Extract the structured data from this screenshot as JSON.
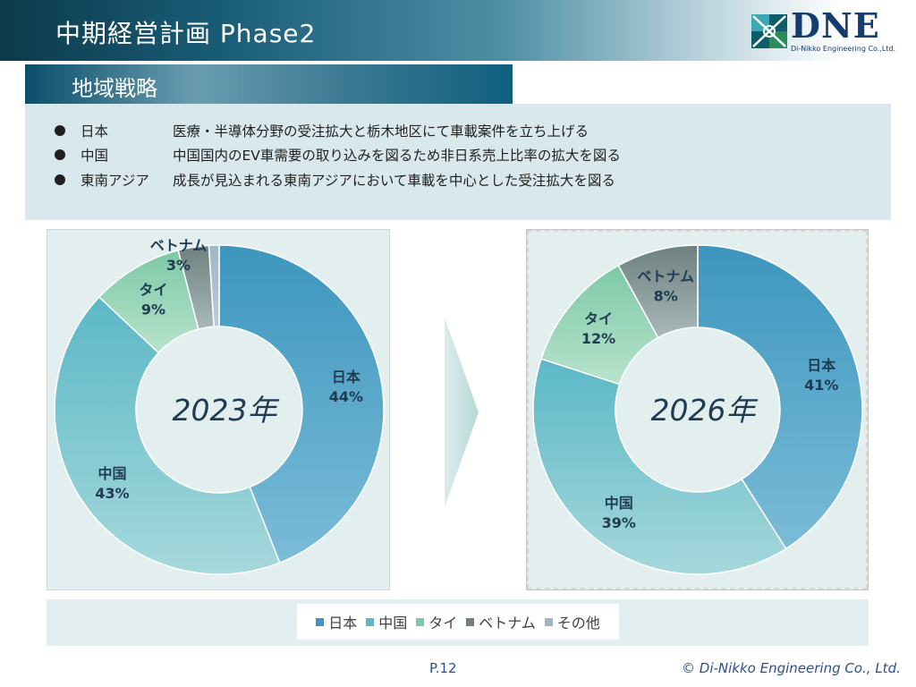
{
  "header": {
    "title": "中期経営計画 Phase2"
  },
  "logo": {
    "text": "DNE",
    "subtext": "Di-Nikko Engineering Co.,Ltd."
  },
  "section": {
    "title": "地域戦略"
  },
  "bullets": [
    {
      "label": "日本",
      "text": "医療・半導体分野の受注拡大と栃木地区にて車載案件を立ち上げる"
    },
    {
      "label": "中国",
      "text": "中国国内のEV車需要の取り込みを図るため非日系売上比率の拡大を図る"
    },
    {
      "label": "東南アジア",
      "text": "成長が見込まれる東南アジアにおいて車載を中心とした受注拡大を図る"
    }
  ],
  "colors": {
    "japan": [
      "#3d96be",
      "#7bbcd8"
    ],
    "china": [
      "#5bb8c6",
      "#a6d8dc"
    ],
    "thai": [
      "#7dc9a6",
      "#b8e3cc"
    ],
    "vietnam": [
      "#6e8080",
      "#a9b8b8"
    ],
    "other": [
      "#9fb6c4",
      "#b9cdd8"
    ],
    "label": "#1f3b52"
  },
  "chart_data": [
    {
      "type": "pie",
      "center_label": "2023年",
      "slices": [
        {
          "key": "japan",
          "name": "日本",
          "pct": "44%",
          "value": 44
        },
        {
          "key": "china",
          "name": "中国",
          "pct": "43%",
          "value": 43
        },
        {
          "key": "thai",
          "name": "タイ",
          "pct": "9%",
          "value": 9
        },
        {
          "key": "vietnam",
          "name": "ベトナム",
          "pct": "3%",
          "value": 3
        },
        {
          "key": "other",
          "name": "",
          "pct": "",
          "value": 1
        }
      ]
    },
    {
      "type": "pie",
      "center_label": "2026年",
      "slices": [
        {
          "key": "japan",
          "name": "日本",
          "pct": "41%",
          "value": 41
        },
        {
          "key": "china",
          "name": "中国",
          "pct": "39%",
          "value": 39
        },
        {
          "key": "thai",
          "name": "タイ",
          "pct": "12%",
          "value": 12
        },
        {
          "key": "vietnam",
          "name": "ベトナム",
          "pct": "8%",
          "value": 8
        }
      ]
    }
  ],
  "legend": [
    {
      "key": "japan",
      "label": "日本"
    },
    {
      "key": "china",
      "label": "中国"
    },
    {
      "key": "thai",
      "label": "タイ"
    },
    {
      "key": "vietnam",
      "label": "ベトナム"
    },
    {
      "key": "other",
      "label": "その他"
    }
  ],
  "footer": {
    "page": "P.12",
    "copyright": "© Di-Nikko Engineering Co., Ltd."
  }
}
